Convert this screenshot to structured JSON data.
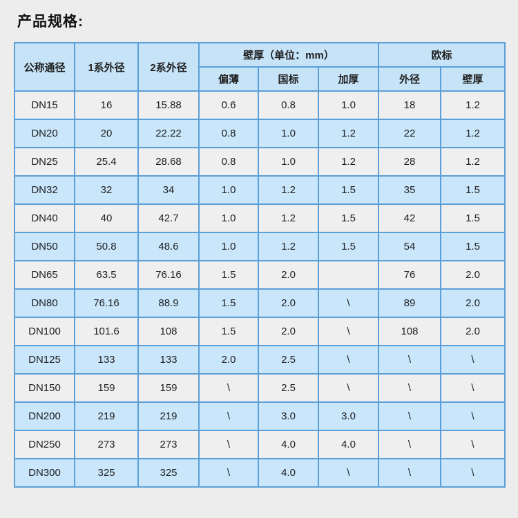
{
  "page": {
    "title": "产品规格:"
  },
  "colors": {
    "page_bg": "#ededed",
    "header_bg": "#c6e3f8",
    "row_blue_bg": "#c9e6fb",
    "row_gray_bg": "#efefef",
    "border": "#5b9fd8",
    "text": "#1f1f1f"
  },
  "table": {
    "header": {
      "col_nominal": "公称通径",
      "col_series1": "1系外径",
      "col_series2": "2系外径",
      "group_wall": "壁厚（单位：mm）",
      "group_eu": "欧标",
      "sub_thin": "偏薄",
      "sub_national": "国标",
      "sub_thick": "加厚",
      "sub_eu_od": "外径",
      "sub_eu_wall": "壁厚"
    },
    "rows": [
      {
        "shade": "gray",
        "cells": [
          "DN15",
          "16",
          "15.88",
          "0.6",
          "0.8",
          "1.0",
          "18",
          "1.2"
        ]
      },
      {
        "shade": "blue",
        "cells": [
          "DN20",
          "20",
          "22.22",
          "0.8",
          "1.0",
          "1.2",
          "22",
          "1.2"
        ]
      },
      {
        "shade": "gray",
        "cells": [
          "DN25",
          "25.4",
          "28.68",
          "0.8",
          "1.0",
          "1.2",
          "28",
          "1.2"
        ]
      },
      {
        "shade": "blue",
        "cells": [
          "DN32",
          "32",
          "34",
          "1.0",
          "1.2",
          "1.5",
          "35",
          "1.5"
        ]
      },
      {
        "shade": "gray",
        "cells": [
          "DN40",
          "40",
          "42.7",
          "1.0",
          "1.2",
          "1.5",
          "42",
          "1.5"
        ]
      },
      {
        "shade": "blue",
        "cells": [
          "DN50",
          "50.8",
          "48.6",
          "1.0",
          "1.2",
          "1.5",
          "54",
          "1.5"
        ]
      },
      {
        "shade": "gray",
        "cells": [
          "DN65",
          "63.5",
          "76.16",
          "1.5",
          "2.0",
          "",
          "76",
          "2.0"
        ]
      },
      {
        "shade": "blue",
        "cells": [
          "DN80",
          "76.16",
          "88.9",
          "1.5",
          "2.0",
          "\\",
          "89",
          "2.0"
        ]
      },
      {
        "shade": "gray",
        "cells": [
          "DN100",
          "101.6",
          "108",
          "1.5",
          "2.0",
          "\\",
          "108",
          "2.0"
        ]
      },
      {
        "shade": "blue",
        "cells": [
          "DN125",
          "133",
          "133",
          "2.0",
          "2.5",
          "\\",
          "\\",
          "\\"
        ]
      },
      {
        "shade": "gray",
        "cells": [
          "DN150",
          "159",
          "159",
          "\\",
          "2.5",
          "\\",
          "\\",
          "\\"
        ]
      },
      {
        "shade": "blue",
        "cells": [
          "DN200",
          "219",
          "219",
          "\\",
          "3.0",
          "3.0",
          "\\",
          "\\"
        ]
      },
      {
        "shade": "gray",
        "cells": [
          "DN250",
          "273",
          "273",
          "\\",
          "4.0",
          "4.0",
          "\\",
          "\\"
        ]
      },
      {
        "shade": "blue",
        "cells": [
          "DN300",
          "325",
          "325",
          "\\",
          "4.0",
          "\\",
          "\\",
          "\\"
        ]
      }
    ]
  }
}
